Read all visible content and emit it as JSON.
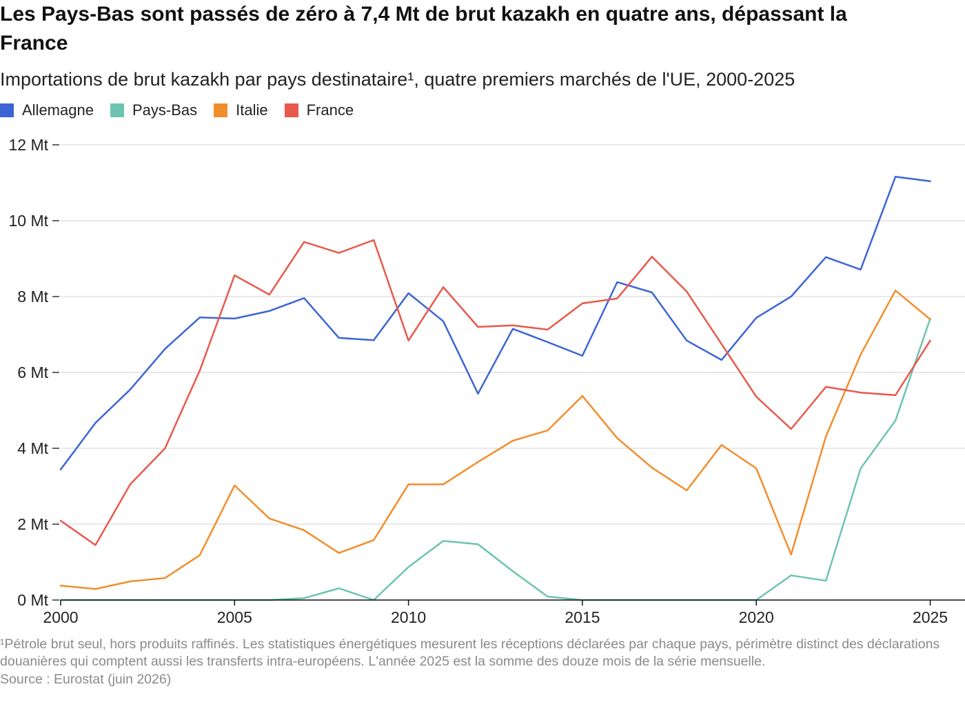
{
  "chart_data": {
    "type": "line",
    "title": "Les Pays-Bas sont passés de zéro à 7,4 Mt de brut kazakh en quatre ans, dépassant la France",
    "subtitle": "Importations de brut kazakh par pays destinataire¹, quatre premiers marchés de l'UE, 2000-2025",
    "x": [
      2000,
      2001,
      2002,
      2003,
      2004,
      2005,
      2006,
      2007,
      2008,
      2009,
      2010,
      2011,
      2012,
      2013,
      2014,
      2015,
      2016,
      2017,
      2018,
      2019,
      2020,
      2021,
      2022,
      2023,
      2024,
      2025
    ],
    "x_ticks": [
      2000,
      2005,
      2010,
      2015,
      2020,
      2025
    ],
    "y_ticks": [
      {
        "value": 0,
        "label": "0 Mt"
      },
      {
        "value": 2,
        "label": "2 Mt"
      },
      {
        "value": 4,
        "label": "4 Mt"
      },
      {
        "value": 6,
        "label": "6 Mt"
      },
      {
        "value": 8,
        "label": "8 Mt"
      },
      {
        "value": 10,
        "label": "10 Mt"
      },
      {
        "value": 12,
        "label": "12 Mt"
      }
    ],
    "xlim": [
      2000,
      2026
    ],
    "ylim": [
      0,
      12
    ],
    "y_grid": true,
    "legend_position": "top-left",
    "series": [
      {
        "name": "Allemagne",
        "color": "#3c64d6",
        "values": [
          3.44,
          4.67,
          5.55,
          6.62,
          7.45,
          7.42,
          7.62,
          7.96,
          6.91,
          6.85,
          8.09,
          7.35,
          5.44,
          7.15,
          6.8,
          6.44,
          8.38,
          8.11,
          6.84,
          6.33,
          7.44,
          8.0,
          9.04,
          8.71,
          11.16,
          11.04
        ]
      },
      {
        "name": "Pays-Bas",
        "color": "#6cc4b0",
        "values": [
          0,
          0,
          0,
          0,
          0,
          0,
          0,
          0.05,
          0.31,
          0,
          0.87,
          1.56,
          1.47,
          0.76,
          0.09,
          0,
          0,
          0,
          0,
          0,
          0,
          0.65,
          0.51,
          3.47,
          4.73,
          7.42
        ]
      },
      {
        "name": "Italie",
        "color": "#f28d2b",
        "values": [
          0.38,
          0.29,
          0.49,
          0.58,
          1.18,
          3.02,
          2.15,
          1.84,
          1.24,
          1.58,
          3.05,
          3.05,
          3.64,
          4.2,
          4.47,
          5.38,
          4.27,
          3.49,
          2.89,
          4.09,
          3.47,
          1.2,
          4.31,
          6.47,
          8.16,
          7.4
        ]
      },
      {
        "name": "France",
        "color": "#e8584b",
        "values": [
          2.09,
          1.45,
          3.05,
          4.0,
          6.05,
          8.56,
          8.05,
          9.44,
          9.15,
          9.49,
          6.84,
          8.25,
          7.2,
          7.24,
          7.13,
          7.82,
          7.95,
          9.05,
          8.13,
          6.75,
          5.36,
          4.51,
          5.62,
          5.47,
          5.4,
          6.84
        ]
      }
    ],
    "footnote": "¹Pétrole brut seul, hors produits raffinés. Les statistiques énergétiques mesurent les réceptions déclarées par chaque pays, périmètre distinct des déclarations douanières qui comptent aussi les transferts intra-européens. L'année 2025 est la somme des douze mois de la série mensuelle.",
    "source": "Source : Eurostat (juin 2026)"
  }
}
